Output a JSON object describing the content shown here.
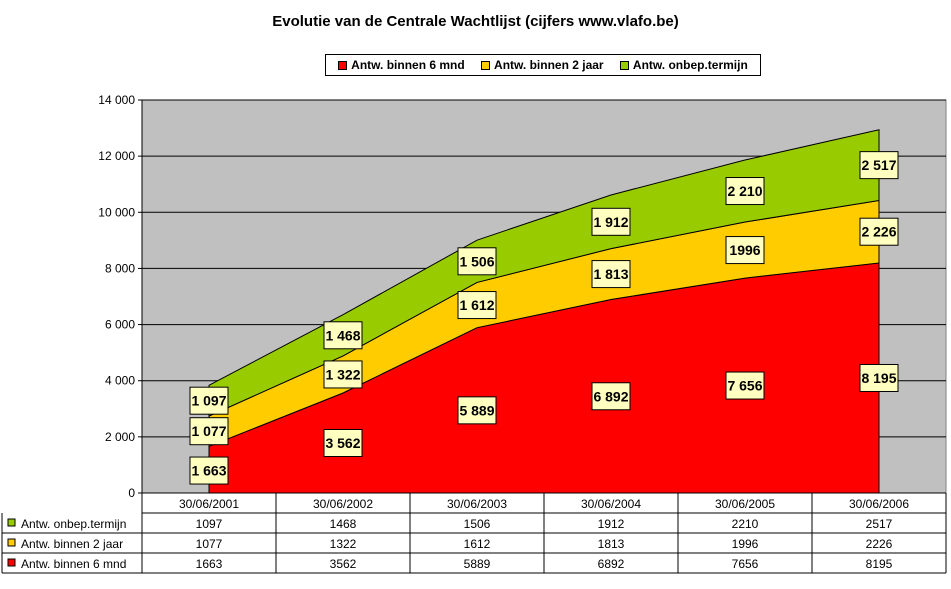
{
  "chart_data": {
    "type": "area",
    "stacked": true,
    "title": "Evolutie van de Centrale Wachtlijst (cijfers www.vlafo.be)",
    "xlabel": "",
    "ylabel": "",
    "categories": [
      "30/06/2001",
      "30/06/2002",
      "30/06/2003",
      "30/06/2004",
      "30/06/2005",
      "30/06/2006"
    ],
    "ylim": [
      0,
      14000
    ],
    "yticks": [
      0,
      2000,
      4000,
      6000,
      8000,
      10000,
      12000,
      14000
    ],
    "ytick_labels": [
      "0",
      "2 000",
      "4 000",
      "6 000",
      "8 000",
      "10 000",
      "12 000",
      "14 000"
    ],
    "grid": true,
    "legend_position": "top",
    "plot_background": "#c0c0c0",
    "series": [
      {
        "name": "Antw. binnen 6 mnd",
        "color": "#ff0000",
        "values": [
          1663,
          3562,
          5889,
          6892,
          7656,
          8195
        ],
        "data_labels": [
          "1 663",
          "3 562",
          "5 889",
          "6 892",
          "7 656",
          "8 195"
        ],
        "table_values": [
          "1663",
          "3562",
          "5889",
          "6892",
          "7656",
          "8195"
        ]
      },
      {
        "name": "Antw. binnen 2 jaar",
        "color": "#ffcc00",
        "values": [
          1077,
          1322,
          1612,
          1813,
          1996,
          2226
        ],
        "data_labels": [
          "1 077",
          "1 322",
          "1 612",
          "1 813",
          "1996",
          "2 226"
        ],
        "table_values": [
          "1077",
          "1322",
          "1612",
          "1813",
          "1996",
          "2226"
        ]
      },
      {
        "name": "Antw. onbep.termijn",
        "color": "#99cc00",
        "values": [
          1097,
          1468,
          1506,
          1912,
          2210,
          2517
        ],
        "data_labels": [
          "1 097",
          "1 468",
          "1 506",
          "1 912",
          "2 210",
          "2 517"
        ],
        "table_values": [
          "1097",
          "1468",
          "1506",
          "1912",
          "2210",
          "2517"
        ]
      }
    ],
    "table_row_order": [
      2,
      1,
      0
    ]
  }
}
